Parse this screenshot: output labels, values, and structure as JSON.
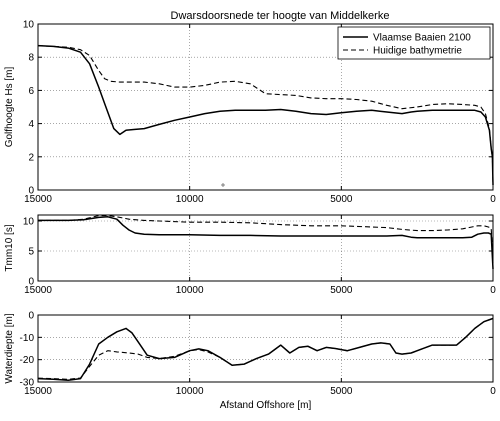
{
  "title": "Dwarsdoorsnede ter hoogte van Middelkerke",
  "chart_data": [
    {
      "type": "line",
      "title": "Dwarsdoorsnede ter hoogte van Middelkerke",
      "xlabel": "",
      "ylabel": "Golfhoogte Hs [m]",
      "xlim": [
        15000,
        0
      ],
      "ylim": [
        0,
        10
      ],
      "xticks": [
        15000,
        10000,
        5000,
        0
      ],
      "yticks": [
        0,
        2,
        4,
        6,
        8,
        10
      ],
      "grid": true,
      "legend": "top-right",
      "series": [
        {
          "name": "Vlaamse Baaien 2100",
          "style": "solid",
          "x": [
            15000,
            14500,
            14000,
            13600,
            13300,
            13000,
            12800,
            12500,
            12300,
            12100,
            11800,
            11500,
            11000,
            10500,
            10000,
            9500,
            9000,
            8500,
            8000,
            7500,
            7000,
            6500,
            6000,
            5500,
            5000,
            4500,
            4000,
            3500,
            3000,
            2700,
            2500,
            2000,
            1500,
            1000,
            600,
            400,
            250,
            120,
            60,
            20,
            0
          ],
          "y": [
            8.7,
            8.65,
            8.55,
            8.3,
            7.6,
            6.2,
            5.2,
            3.7,
            3.35,
            3.6,
            3.65,
            3.7,
            3.95,
            4.2,
            4.4,
            4.6,
            4.75,
            4.8,
            4.8,
            4.8,
            4.85,
            4.75,
            4.6,
            4.55,
            4.65,
            4.75,
            4.8,
            4.7,
            4.6,
            4.7,
            4.75,
            4.8,
            4.8,
            4.8,
            4.8,
            4.7,
            4.4,
            3.6,
            2.5,
            2.0,
            0.3
          ]
        },
        {
          "name": "Huidige bathymetrie",
          "style": "dashed",
          "x": [
            15000,
            14500,
            14000,
            13600,
            13300,
            13000,
            12800,
            12600,
            12300,
            12000,
            11500,
            11000,
            10500,
            10000,
            9500,
            9000,
            8500,
            8000,
            7500,
            7000,
            6500,
            6000,
            5500,
            5000,
            4500,
            4000,
            3500,
            3000,
            2500,
            2000,
            1500,
            1000,
            600,
            400,
            250,
            120,
            60,
            20,
            0
          ],
          "y": [
            8.7,
            8.65,
            8.6,
            8.45,
            8.1,
            7.2,
            6.7,
            6.55,
            6.5,
            6.5,
            6.5,
            6.4,
            6.2,
            6.2,
            6.3,
            6.5,
            6.55,
            6.4,
            5.8,
            5.75,
            5.7,
            5.55,
            5.5,
            5.5,
            5.45,
            5.35,
            5.1,
            4.9,
            5.0,
            5.15,
            5.2,
            5.15,
            5.1,
            5.0,
            4.6,
            3.7,
            2.5,
            2.0,
            0.4
          ]
        }
      ]
    },
    {
      "type": "line",
      "xlabel": "",
      "ylabel": "Tmm10 [s]",
      "xlim": [
        15000,
        0
      ],
      "ylim": [
        0,
        11
      ],
      "xticks": [
        15000,
        10000,
        5000,
        0
      ],
      "yticks": [
        0,
        5,
        10
      ],
      "grid": true,
      "series": [
        {
          "style": "solid",
          "x": [
            15000,
            14000,
            13500,
            13000,
            12700,
            12400,
            12200,
            12000,
            11800,
            11500,
            11000,
            10000,
            9000,
            8000,
            7000,
            6000,
            5000,
            4000,
            3500,
            3000,
            2700,
            2500,
            2000,
            1500,
            1000,
            700,
            500,
            300,
            150,
            60,
            0
          ],
          "y": [
            10.1,
            10.1,
            10.2,
            10.6,
            10.7,
            10.3,
            9.3,
            8.5,
            8.0,
            7.8,
            7.7,
            7.7,
            7.6,
            7.6,
            7.5,
            7.5,
            7.5,
            7.5,
            7.5,
            7.6,
            7.3,
            7.2,
            7.2,
            7.2,
            7.2,
            7.3,
            7.8,
            8.0,
            8.0,
            7.8,
            2.0
          ]
        },
        {
          "style": "dashed",
          "x": [
            15000,
            14000,
            13500,
            13000,
            12700,
            12400,
            12000,
            11500,
            11000,
            10000,
            9000,
            8000,
            7000,
            6000,
            5000,
            4000,
            3500,
            3000,
            2500,
            2000,
            1500,
            1000,
            700,
            500,
            300,
            150,
            60,
            0
          ],
          "y": [
            10.1,
            10.1,
            10.3,
            10.9,
            10.9,
            10.7,
            10.3,
            10.1,
            10.0,
            9.8,
            9.8,
            9.7,
            9.4,
            9.2,
            9.2,
            9.0,
            8.9,
            8.6,
            8.4,
            8.4,
            8.5,
            8.7,
            9.0,
            9.2,
            9.2,
            9.0,
            8.8,
            3.0
          ]
        }
      ]
    },
    {
      "type": "line",
      "xlabel": "Afstand Offshore [m]",
      "ylabel": "Waterdiepte [m]",
      "xlim": [
        15000,
        0
      ],
      "ylim": [
        -30,
        0
      ],
      "xticks": [
        15000,
        10000,
        5000,
        0
      ],
      "yticks": [
        -30,
        -20,
        -10,
        0
      ],
      "grid": true,
      "series": [
        {
          "style": "solid",
          "x": [
            15000,
            14500,
            14000,
            13600,
            13300,
            13000,
            12700,
            12400,
            12100,
            11900,
            11700,
            11400,
            11000,
            10500,
            10000,
            9700,
            9400,
            9000,
            8600,
            8200,
            7800,
            7400,
            7000,
            6700,
            6400,
            6100,
            5800,
            5500,
            5200,
            4800,
            4400,
            4000,
            3700,
            3400,
            3200,
            3000,
            2700,
            2400,
            2000,
            1600,
            1200,
            900,
            600,
            300,
            100,
            0
          ],
          "y": [
            -28.5,
            -28.8,
            -29.2,
            -28.5,
            -22,
            -13,
            -10,
            -7.5,
            -6,
            -8,
            -12,
            -18,
            -19.5,
            -19,
            -16,
            -15.2,
            -16,
            -19,
            -22.5,
            -22,
            -19.5,
            -17.5,
            -13.5,
            -17,
            -14.5,
            -14,
            -16,
            -14.5,
            -15,
            -16,
            -14.5,
            -13,
            -12.5,
            -13,
            -17,
            -17.5,
            -17,
            -15.5,
            -13.5,
            -13.5,
            -13.5,
            -10,
            -6,
            -3,
            -2,
            -1.5
          ]
        },
        {
          "style": "dashed",
          "x": [
            15000,
            14500,
            14000,
            13600,
            13300,
            13000,
            12700,
            12400,
            12000,
            11700,
            11400,
            11000,
            10500,
            10000,
            9700,
            9400,
            9000,
            8600,
            8200,
            7800,
            7400,
            7000,
            6700,
            6400,
            6100,
            5800,
            5500,
            5200,
            4800,
            4400,
            4000,
            3700,
            3400,
            3200,
            3000,
            2700,
            2400,
            2000,
            1600,
            1200,
            900,
            600,
            300,
            100,
            0
          ],
          "y": [
            -28.3,
            -28.5,
            -28.8,
            -28.2,
            -23,
            -18,
            -16,
            -16.5,
            -17,
            -17.5,
            -19,
            -19.5,
            -18.5,
            -16,
            -15.5,
            -16.5,
            -19,
            -22.5,
            -22,
            -19.5,
            -17.5,
            -13.5,
            -17,
            -14.5,
            -14,
            -16,
            -14.5,
            -15,
            -16,
            -14.5,
            -13,
            -12.5,
            -13,
            -17,
            -17.5,
            -17,
            -15.5,
            -13.5,
            -13.5,
            -13.5,
            -10,
            -6,
            -3,
            -2,
            -1.5
          ]
        }
      ]
    }
  ]
}
